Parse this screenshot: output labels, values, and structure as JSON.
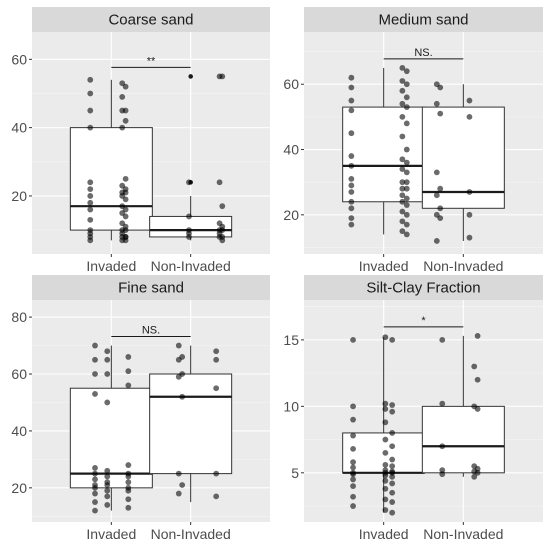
{
  "chart_data": [
    {
      "type": "box",
      "title": "Coarse sand",
      "categories": [
        "Invaded",
        "Non-Invaded"
      ],
      "ylim": [
        3,
        68
      ],
      "yticks": [
        20,
        40,
        60
      ],
      "boxes": [
        {
          "name": "Invaded",
          "min": 7,
          "q1": 10,
          "median": 17,
          "q3": 40,
          "max": 54,
          "outliers": []
        },
        {
          "name": "Non-Invaded",
          "min": 7,
          "q1": 8,
          "median": 10,
          "q3": 14,
          "max": 20,
          "outliers": [
            24,
            24,
            55,
            55
          ]
        }
      ],
      "points": [
        [
          54,
          53,
          52,
          50,
          49,
          45,
          45,
          45,
          42,
          40,
          40,
          25,
          24,
          23,
          22,
          22,
          21,
          21,
          20,
          20,
          19,
          18,
          17,
          16,
          16,
          15,
          14,
          13,
          12,
          11,
          10,
          10,
          10,
          9,
          9,
          8,
          8,
          8,
          8,
          7,
          7,
          7
        ],
        [
          55,
          55,
          24,
          24,
          17,
          14,
          12,
          11,
          10,
          10,
          10,
          9,
          9,
          8,
          8,
          8,
          7
        ]
      ],
      "significance": "**"
    },
    {
      "type": "box",
      "title": "Medium sand",
      "categories": [
        "Invaded",
        "Non-Invaded"
      ],
      "ylim": [
        8,
        76
      ],
      "yticks": [
        20,
        40,
        60
      ],
      "boxes": [
        {
          "name": "Invaded",
          "min": 14,
          "q1": 24,
          "median": 35,
          "q3": 53,
          "max": 65,
          "outliers": []
        },
        {
          "name": "Non-Invaded",
          "min": 12,
          "q1": 22,
          "median": 27,
          "q3": 53,
          "max": 60,
          "outliers": []
        }
      ],
      "points": [
        [
          65,
          64,
          62,
          61,
          60,
          59,
          58,
          56,
          55,
          54,
          53,
          52,
          50,
          48,
          45,
          44,
          40,
          38,
          37,
          36,
          35,
          34,
          33,
          31,
          30,
          30,
          29,
          28,
          28,
          27,
          26,
          25,
          24,
          24,
          23,
          22,
          21,
          20,
          19,
          18,
          17,
          17,
          15,
          14
        ],
        [
          60,
          59,
          55,
          54,
          51,
          50,
          33,
          28,
          27,
          26,
          22,
          20,
          20,
          19,
          13,
          12
        ]
      ],
      "significance": "NS."
    },
    {
      "type": "box",
      "title": "Fine sand",
      "categories": [
        "Invaded",
        "Non-Invaded"
      ],
      "ylim": [
        8,
        86
      ],
      "yticks": [
        20,
        40,
        60,
        80
      ],
      "boxes": [
        {
          "name": "Invaded",
          "min": 12,
          "q1": 20,
          "median": 25,
          "q3": 55,
          "max": 70,
          "outliers": []
        },
        {
          "name": "Non-Invaded",
          "min": 15,
          "q1": 25,
          "median": 52,
          "q3": 60,
          "max": 70,
          "outliers": []
        }
      ],
      "points": [
        [
          70,
          68,
          66,
          65,
          65,
          61,
          60,
          60,
          56,
          53,
          50,
          28,
          27,
          26,
          25,
          25,
          24,
          24,
          23,
          22,
          22,
          21,
          21,
          20,
          20,
          19,
          19,
          18,
          17,
          16,
          15,
          14,
          13,
          12
        ],
        [
          70,
          68,
          66,
          65,
          65,
          60,
          59,
          55,
          52,
          25,
          25,
          21,
          18,
          17
        ]
      ],
      "significance": "NS."
    },
    {
      "type": "box",
      "title": "Silt-Clay Fraction",
      "categories": [
        "Invaded",
        "Non-Invaded"
      ],
      "ylim": [
        1.3,
        18
      ],
      "yticks": [
        5,
        10,
        15
      ],
      "boxes": [
        {
          "name": "Invaded",
          "min": 2,
          "q1": 5,
          "median": 5,
          "q3": 8,
          "max": 15.2,
          "outliers": []
        },
        {
          "name": "Non-Invaded",
          "min": 4.7,
          "q1": 5,
          "median": 7,
          "q3": 10,
          "max": 15.3,
          "outliers": []
        }
      ],
      "points": [
        [
          15.2,
          15,
          15,
          10.2,
          10.1,
          10,
          9.8,
          9.6,
          9,
          8.8,
          8,
          7.8,
          7.5,
          7,
          6.8,
          6.5,
          6,
          5.8,
          5.6,
          5.5,
          5.4,
          5.2,
          5.1,
          5,
          5,
          5,
          4.9,
          4.8,
          4.7,
          4.5,
          4.4,
          4.2,
          4,
          3.8,
          3.5,
          3.2,
          3,
          2.8,
          2.5,
          2.2,
          2
        ],
        [
          15.3,
          15,
          13,
          12,
          10.2,
          10,
          9.8,
          7,
          5.5,
          5.3,
          5.2,
          5.1,
          5,
          4.9,
          4.7
        ]
      ],
      "significance": "*"
    }
  ]
}
